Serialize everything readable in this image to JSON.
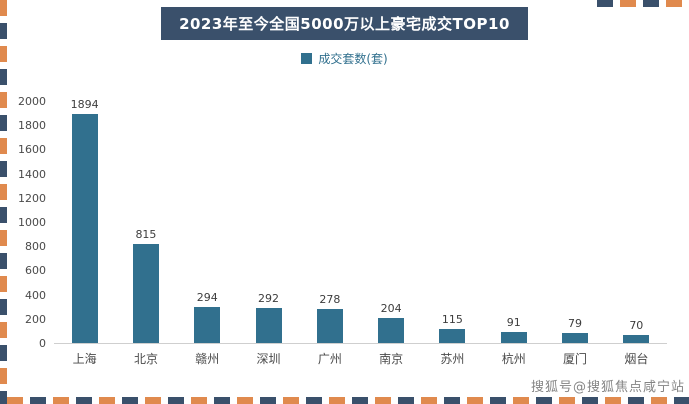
{
  "page": {
    "title": "2023年至今全国5000万以上豪宅成交TOP10",
    "watermark": "搜狐号@搜狐焦点咸宁站"
  },
  "legend": {
    "label": "成交套数(套)"
  },
  "chart_data": {
    "type": "bar",
    "title": "2023年至今全国5000万以上豪宅成交TOP10",
    "categories": [
      "上海",
      "北京",
      "赣州",
      "深圳",
      "广州",
      "南京",
      "苏州",
      "杭州",
      "厦门",
      "烟台"
    ],
    "values": [
      1894,
      815,
      294,
      292,
      278,
      204,
      115,
      91,
      79,
      70
    ],
    "series_name": "成交套数(套)",
    "xlabel": "",
    "ylabel": "",
    "ylim": [
      0,
      2000
    ],
    "ytick_step": 200,
    "grid": false,
    "legend_position": "top",
    "bar_color": "#31708E"
  },
  "colors": {
    "bar": "#31708E",
    "title_background": "#3A506B",
    "title_text": "#FFFFFF",
    "stripe_orange": "#E08A4E",
    "stripe_dark": "#3A506B",
    "legend_text": "#31708E",
    "watermark_text": "#6E6E6E"
  }
}
